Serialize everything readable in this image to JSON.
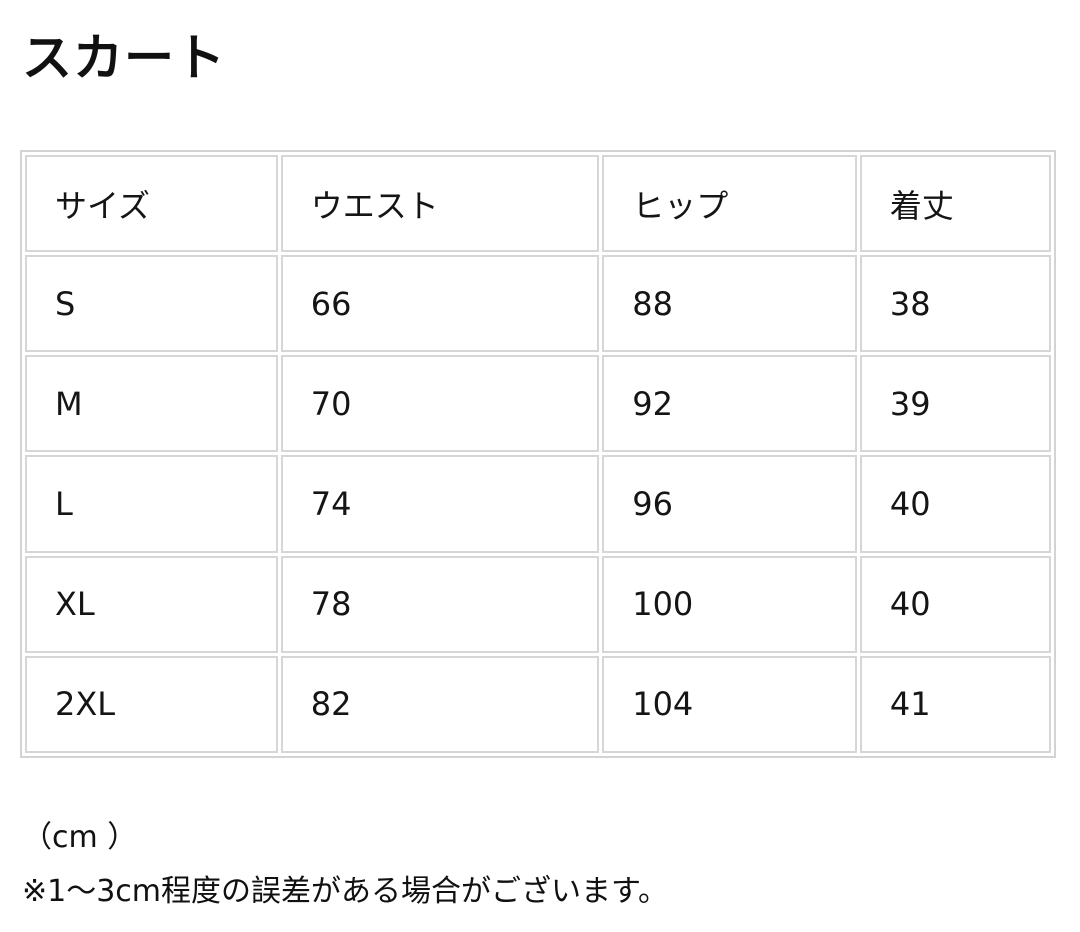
{
  "title": "スカート",
  "table": {
    "headers": [
      "サイズ",
      "ウエスト",
      "ヒップ",
      "着丈"
    ],
    "rows": [
      [
        "S",
        "66",
        "88",
        "38"
      ],
      [
        "M",
        "70",
        "92",
        "39"
      ],
      [
        "L",
        "74",
        "96",
        "40"
      ],
      [
        "XL",
        "78",
        "100",
        "40"
      ],
      [
        "2XL",
        "82",
        "104",
        "41"
      ]
    ]
  },
  "unit": "（cm ）",
  "note": "※1〜3cm程度の誤差がある場合がございます。"
}
